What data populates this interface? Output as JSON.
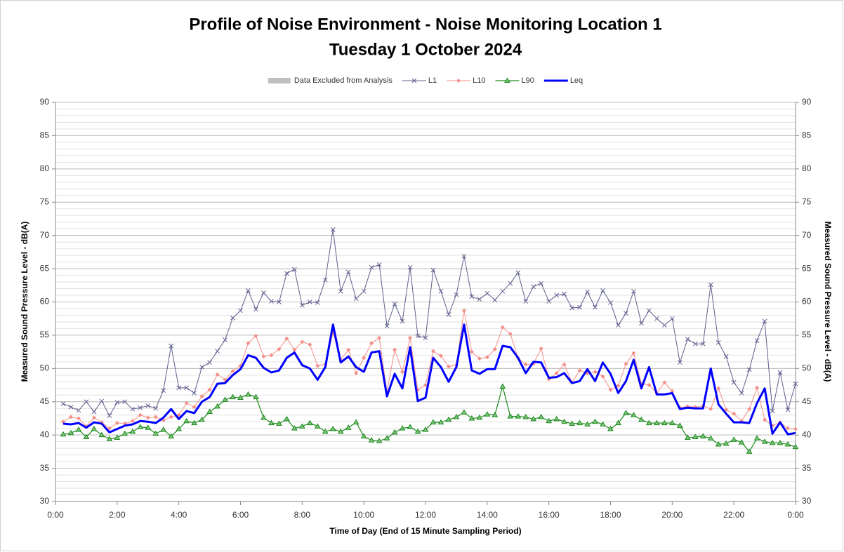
{
  "chart_data": {
    "type": "line",
    "title": "Profile of Noise Environment - Noise Monitoring Location 1",
    "subtitle": "Tuesday 1 October 2024",
    "xlabel": "Time of Day (End of 15 Minute Sampling Period)",
    "ylabel": "Measured Sound Pressure Level - dB(A)",
    "y2label": "Measured Sound Pressure Level - dB(A)",
    "excluded_legend": {
      "name": "Data Excluded from Analysis",
      "color": "#bfbfbf"
    },
    "xlim": [
      0,
      24
    ],
    "xticks": [
      {
        "value": 0,
        "label": "0:00"
      },
      {
        "value": 2,
        "label": "2:00"
      },
      {
        "value": 4,
        "label": "4:00"
      },
      {
        "value": 6,
        "label": "6:00"
      },
      {
        "value": 8,
        "label": "8:00"
      },
      {
        "value": 10,
        "label": "10:00"
      },
      {
        "value": 12,
        "label": "12:00"
      },
      {
        "value": 14,
        "label": "14:00"
      },
      {
        "value": 16,
        "label": "16:00"
      },
      {
        "value": 18,
        "label": "18:00"
      },
      {
        "value": 20,
        "label": "20:00"
      },
      {
        "value": 22,
        "label": "22:00"
      },
      {
        "value": 24,
        "label": "0:00"
      }
    ],
    "ylim": [
      30,
      90
    ],
    "yticks": [
      30,
      35,
      40,
      45,
      50,
      55,
      60,
      65,
      70,
      75,
      80,
      85,
      90
    ],
    "y2lim": [
      30,
      90
    ],
    "y2ticks": [
      30,
      35,
      40,
      45,
      50,
      55,
      60,
      65,
      70,
      75,
      80,
      85,
      90
    ],
    "grid": true,
    "minor_grid_step": 1,
    "x": [
      0.25,
      0.5,
      0.75,
      1,
      1.25,
      1.5,
      1.75,
      2,
      2.25,
      2.5,
      2.75,
      3,
      3.25,
      3.5,
      3.75,
      4,
      4.25,
      4.5,
      4.75,
      5,
      5.25,
      5.5,
      5.75,
      6,
      6.25,
      6.5,
      6.75,
      7,
      7.25,
      7.5,
      7.75,
      8,
      8.25,
      8.5,
      8.75,
      9,
      9.25,
      9.5,
      9.75,
      10,
      10.25,
      10.5,
      10.75,
      11,
      11.25,
      11.5,
      11.75,
      12,
      12.25,
      12.5,
      12.75,
      13,
      13.25,
      13.5,
      13.75,
      14,
      14.25,
      14.5,
      14.75,
      15,
      15.25,
      15.5,
      15.75,
      16,
      16.25,
      16.5,
      16.75,
      17,
      17.25,
      17.5,
      17.75,
      18,
      18.25,
      18.5,
      18.75,
      19,
      19.25,
      19.5,
      19.75,
      20,
      20.25,
      20.5,
      20.75,
      21,
      21.25,
      21.5,
      21.75,
      22,
      22.25,
      22.5,
      22.75,
      23,
      23.25,
      23.5,
      23.75,
      24
    ],
    "series": [
      {
        "name": "L1",
        "color": "#5f5f8f",
        "marker": "x",
        "width": 1,
        "values": [
          44.7,
          44.2,
          43.7,
          45.0,
          43.5,
          45.1,
          42.9,
          44.9,
          45.0,
          43.9,
          44.1,
          44.4,
          44.0,
          46.7,
          53.4,
          47.1,
          47.1,
          46.3,
          50.2,
          50.9,
          52.6,
          54.3,
          57.6,
          58.7,
          61.7,
          58.9,
          61.4,
          60.1,
          60.0,
          64.3,
          64.9,
          59.5,
          60.0,
          59.9,
          63.3,
          70.9,
          61.6,
          64.5,
          60.5,
          61.6,
          65.2,
          65.6,
          56.4,
          59.7,
          57.1,
          65.2,
          54.9,
          54.6,
          64.8,
          61.6,
          58.1,
          61.1,
          66.9,
          60.8,
          60.4,
          61.3,
          60.3,
          61.6,
          62.8,
          64.4,
          60.1,
          62.3,
          62.8,
          60.1,
          61.0,
          61.2,
          59.1,
          59.2,
          61.5,
          59.2,
          61.7,
          59.9,
          56.5,
          58.3,
          61.6,
          56.8,
          58.7,
          57.5,
          56.5,
          57.5,
          50.9,
          54.4,
          53.7,
          53.7,
          62.6,
          53.9,
          51.8,
          47.9,
          46.3,
          49.8,
          54.2,
          57.1,
          43.6,
          49.4,
          43.8,
          47.7
        ]
      },
      {
        "name": "L10",
        "color": "#f4908a",
        "marker": "diamond",
        "width": 1,
        "values": [
          42.0,
          42.7,
          42.5,
          41.3,
          42.6,
          41.9,
          41.0,
          41.8,
          41.7,
          42.1,
          43.0,
          42.6,
          42.7,
          42.2,
          42.7,
          43.0,
          44.8,
          44.2,
          45.8,
          46.8,
          49.1,
          48.3,
          49.6,
          50.4,
          53.8,
          54.9,
          51.8,
          52.0,
          52.9,
          54.5,
          52.8,
          54.0,
          53.6,
          50.4,
          50.6,
          55.4,
          51.3,
          52.8,
          49.3,
          51.6,
          53.8,
          54.6,
          46.5,
          52.8,
          49.5,
          54.6,
          46.8,
          47.5,
          52.6,
          51.9,
          50.3,
          50.5,
          58.7,
          52.5,
          51.5,
          51.7,
          52.9,
          56.2,
          55.2,
          51.6,
          50.6,
          50.7,
          53.0,
          48.4,
          49.3,
          50.6,
          47.9,
          49.7,
          49.3,
          49.5,
          48.8,
          46.8,
          47.4,
          50.7,
          52.3,
          47.7,
          47.5,
          46.3,
          47.9,
          46.6,
          44.1,
          44.3,
          44.2,
          44.4,
          43.9,
          47.0,
          43.8,
          43.2,
          42.1,
          43.9,
          47.1,
          42.3,
          41.4,
          41.9,
          41.0,
          40.9
        ]
      },
      {
        "name": "L90",
        "color": "#1a8a1a",
        "marker": "triangle",
        "width": 1.2,
        "values": [
          40.1,
          40.3,
          40.8,
          39.7,
          40.9,
          40.0,
          39.4,
          39.6,
          40.2,
          40.5,
          41.2,
          41.1,
          40.2,
          40.8,
          39.8,
          40.9,
          42.1,
          41.8,
          42.3,
          43.5,
          44.3,
          45.3,
          45.7,
          45.6,
          46.1,
          45.7,
          42.6,
          41.8,
          41.7,
          42.4,
          41.0,
          41.3,
          41.8,
          41.3,
          40.5,
          40.9,
          40.5,
          41.1,
          41.9,
          39.8,
          39.2,
          39.1,
          39.5,
          40.4,
          41.0,
          41.2,
          40.5,
          40.8,
          41.9,
          41.9,
          42.3,
          42.7,
          43.4,
          42.5,
          42.6,
          43.1,
          43.0,
          47.3,
          42.8,
          42.8,
          42.7,
          42.4,
          42.7,
          42.1,
          42.4,
          42.0,
          41.7,
          41.8,
          41.6,
          42.0,
          41.6,
          40.9,
          41.8,
          43.3,
          43.0,
          42.3,
          41.8,
          41.8,
          41.8,
          41.8,
          41.4,
          39.6,
          39.7,
          39.8,
          39.5,
          38.6,
          38.7,
          39.3,
          38.9,
          37.5,
          39.5,
          39.0,
          38.8,
          38.8,
          38.6,
          38.2
        ]
      },
      {
        "name": "Leq",
        "color": "#0000ff",
        "marker": "none",
        "width": 3,
        "values": [
          41.7,
          41.6,
          41.8,
          41.1,
          41.9,
          41.7,
          40.4,
          40.9,
          41.4,
          41.6,
          42.1,
          42.0,
          41.8,
          42.6,
          43.9,
          42.4,
          43.6,
          43.3,
          45.0,
          45.7,
          47.7,
          47.8,
          49.0,
          49.9,
          52.0,
          51.6,
          50.1,
          49.4,
          49.7,
          51.6,
          52.4,
          50.5,
          50.0,
          48.3,
          50.2,
          56.6,
          50.9,
          51.8,
          50.2,
          49.5,
          52.4,
          52.6,
          45.8,
          49.2,
          47.0,
          53.2,
          45.1,
          45.6,
          51.6,
          50.2,
          48.0,
          50.2,
          56.6,
          49.7,
          49.2,
          49.9,
          49.9,
          53.4,
          53.2,
          51.6,
          49.3,
          51.0,
          50.9,
          48.6,
          48.7,
          49.3,
          47.8,
          48.1,
          49.9,
          48.1,
          50.9,
          49.2,
          46.3,
          48.1,
          51.3,
          47.0,
          50.2,
          46.1,
          46.1,
          46.3,
          43.9,
          44.1,
          44.0,
          44.0,
          50.0,
          44.6,
          43.2,
          41.9,
          41.9,
          41.8,
          44.8,
          47.0,
          40.2,
          41.9,
          40.1,
          40.3
        ]
      }
    ]
  }
}
